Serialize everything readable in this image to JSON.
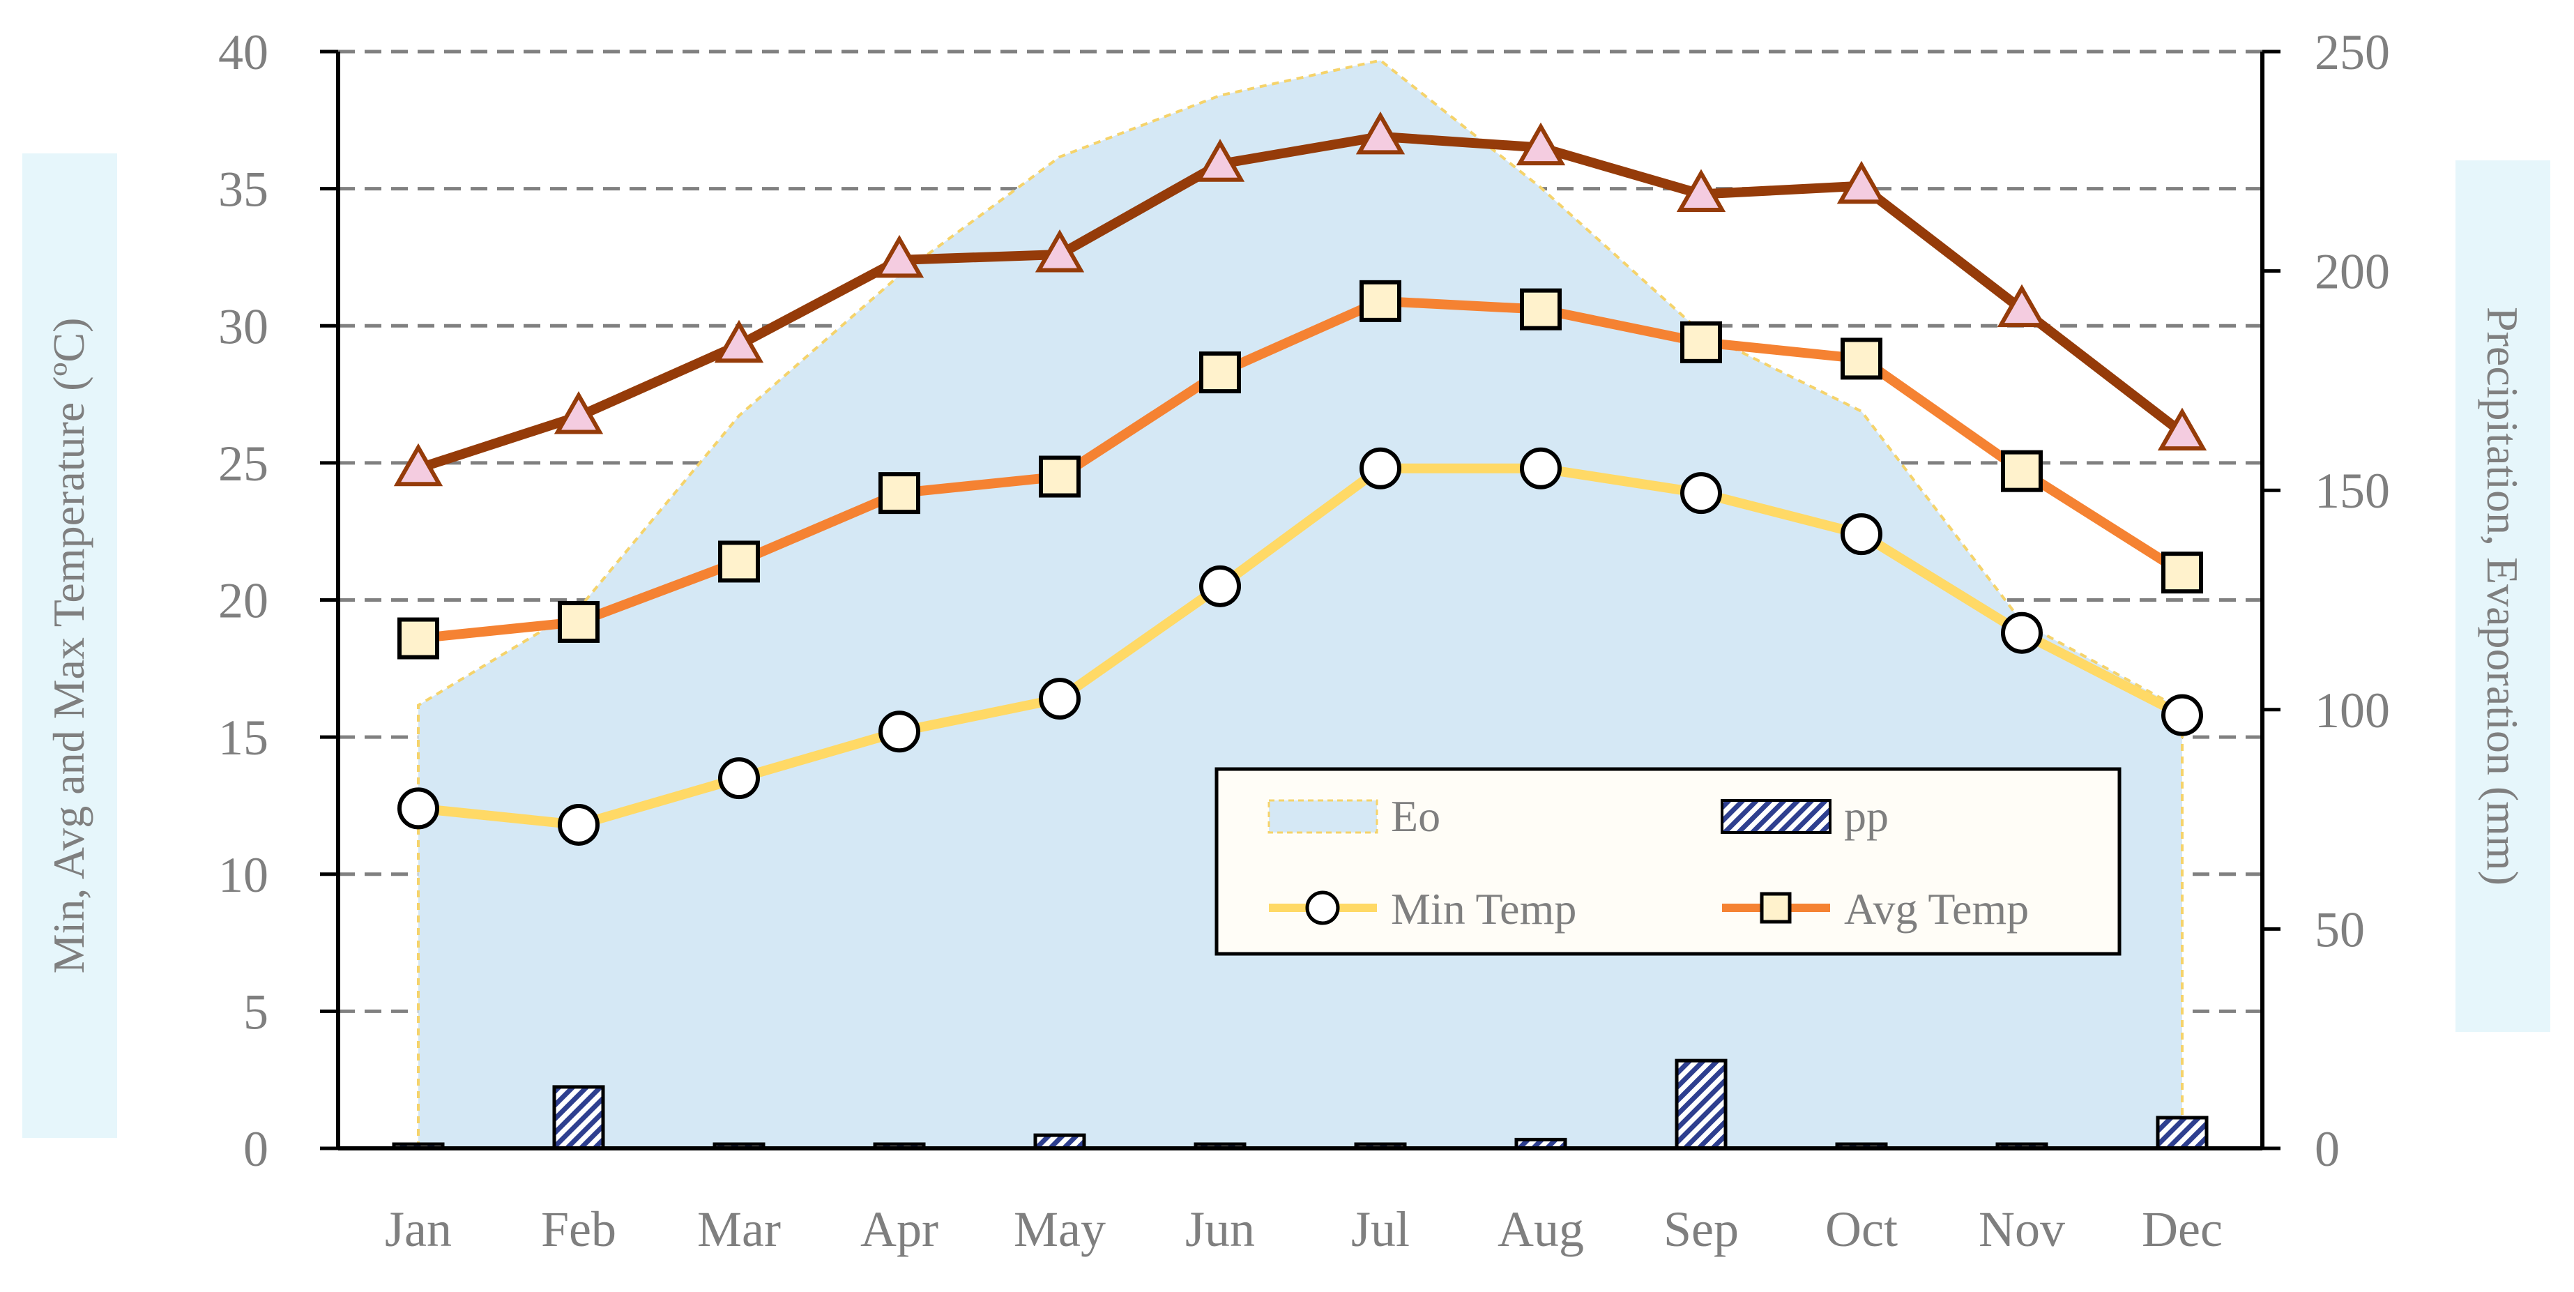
{
  "chart_data": {
    "type": "line",
    "categories": [
      "Jan",
      "Feb",
      "Mar",
      "Apr",
      "May",
      "Jun",
      "Jul",
      "Aug",
      "Sep",
      "Oct",
      "Nov",
      "Dec"
    ],
    "left_axis": {
      "label": "Min, Avg and Max Temperature (ºC)",
      "ylim": [
        0,
        40
      ],
      "ticks": [
        0,
        5,
        10,
        15,
        20,
        25,
        30,
        35,
        40
      ]
    },
    "right_axis": {
      "label": "Precipitation, Evaporation (mm)",
      "ylim": [
        0,
        250
      ],
      "ticks": [
        0,
        50,
        100,
        150,
        200,
        250
      ]
    },
    "grid": true,
    "legend_position": "lower-right (inside plot)",
    "series": [
      {
        "name": "Eo",
        "kind": "area",
        "axis": "right",
        "color": "#d5e8f5",
        "edge_color": "#f5d36b",
        "values": [
          101,
          123,
          167,
          199,
          226,
          240,
          248,
          219,
          186,
          168,
          120,
          100
        ]
      },
      {
        "name": "pp",
        "kind": "bar",
        "axis": "right",
        "color": "#2e3f8f",
        "values": [
          0,
          14,
          0,
          0,
          3,
          0.5,
          0.5,
          2,
          20,
          0,
          0,
          7
        ]
      },
      {
        "name": "Min Temp",
        "kind": "line",
        "axis": "left",
        "color": "#ffd966",
        "marker": "circle",
        "values": [
          12.4,
          11.8,
          13.5,
          15.2,
          16.4,
          20.5,
          24.8,
          24.8,
          23.9,
          22.4,
          18.8,
          15.8
        ]
      },
      {
        "name": "Avg Temp",
        "kind": "line",
        "axis": "left",
        "color": "#f58232",
        "marker": "square",
        "values": [
          18.6,
          19.2,
          21.4,
          23.9,
          24.5,
          28.3,
          30.9,
          30.6,
          29.4,
          28.8,
          24.7,
          21.0
        ]
      },
      {
        "name": "",
        "kind": "line",
        "axis": "left",
        "color": "#953b09",
        "marker": "triangle",
        "values": [
          24.8,
          26.7,
          29.3,
          32.4,
          32.6,
          35.9,
          36.9,
          36.5,
          34.8,
          35.1,
          30.6,
          26.1
        ]
      }
    ],
    "legend": [
      "Eo",
      "pp",
      "Min Temp",
      "Avg Temp"
    ]
  }
}
